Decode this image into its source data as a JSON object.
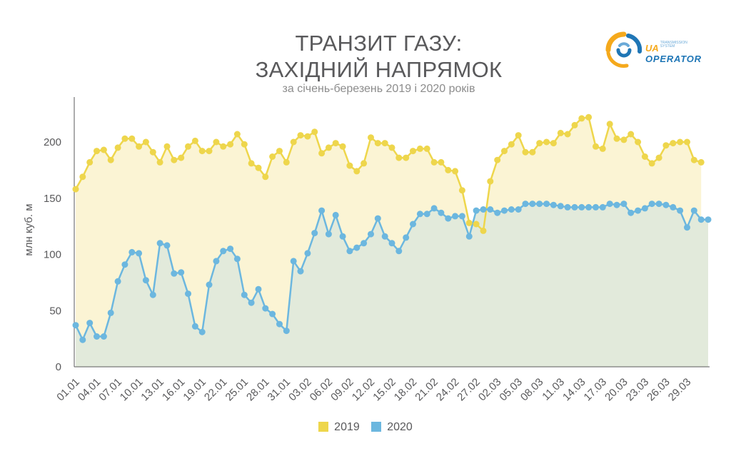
{
  "header": {
    "title_line1": "ТРАНЗИТ ГАЗУ:",
    "title_line2": "ЗАХІДНИЙ НАПРЯМОК",
    "subtitle": "за січень-березень 2019 і 2020 років"
  },
  "logo": {
    "ua": "UA",
    "tagline_1": "transmission",
    "tagline_2": "system",
    "operator": "OPERATOR",
    "colors": [
      "#f5a91c",
      "#1f76b6",
      "#6aa9d8"
    ]
  },
  "colors": {
    "series_2019": "#eed64c",
    "fill_2019": "#fbf4d4",
    "series_2020": "#6cb7df",
    "fill_2020": "#e2eadb",
    "axis": "#59595b"
  },
  "chart_data": {
    "type": "line",
    "title": "ТРАНЗИТ ГАЗУ: ЗАХІДНИЙ НАПРЯМОК",
    "subtitle": "за січень-березень 2019 і 2020 років",
    "ylabel": "млн куб. м",
    "xlabel": "",
    "ylim": [
      0,
      240
    ],
    "yticks": [
      0,
      50,
      100,
      150,
      200
    ],
    "grid": false,
    "legend_position": "bottom",
    "x_tick_labels": [
      "01.01",
      "04.01",
      "07.01",
      "10.01",
      "13.01",
      "16.01",
      "19.01",
      "22.01",
      "25.01",
      "28.01",
      "31.01",
      "03.02",
      "06.02",
      "09.02",
      "12.02",
      "15.02",
      "18.02",
      "21.02",
      "24.02",
      "27.02",
      "02.03",
      "05.03",
      "08.03",
      "11.03",
      "14.03",
      "17.03",
      "20.03",
      "23.03",
      "26.03",
      "29.03"
    ],
    "series": [
      {
        "name": "2019",
        "values": [
          158,
          169,
          182,
          192,
          193,
          184,
          195,
          203,
          203,
          196,
          200,
          191,
          182,
          196,
          184,
          186,
          196,
          201,
          192,
          192,
          200,
          196,
          198,
          207,
          198,
          181,
          177,
          169,
          187,
          192,
          182,
          200,
          206,
          205,
          209,
          190,
          195,
          199,
          196,
          179,
          174,
          181,
          204,
          199,
          199,
          195,
          186,
          186,
          192,
          194,
          194,
          182,
          182,
          175,
          174,
          157,
          128,
          127,
          121,
          165,
          184,
          192,
          198,
          206,
          191,
          191,
          199,
          200,
          199,
          208,
          207,
          215,
          221,
          222,
          196,
          194,
          216,
          203,
          202,
          207,
          200,
          187,
          181,
          186,
          197,
          199,
          200,
          200,
          184,
          182
        ]
      },
      {
        "name": "2020",
        "values": [
          37,
          24,
          39,
          27,
          27,
          48,
          76,
          91,
          102,
          101,
          77,
          64,
          110,
          108,
          83,
          84,
          65,
          36,
          31,
          73,
          94,
          103,
          105,
          96,
          64,
          57,
          69,
          52,
          47,
          38,
          32,
          94,
          85,
          101,
          119,
          139,
          118,
          135,
          116,
          103,
          106,
          110,
          118,
          132,
          116,
          110,
          103,
          115,
          127,
          136,
          136,
          141,
          137,
          132,
          134,
          134,
          116,
          139,
          140,
          140,
          137,
          139,
          140,
          140,
          145,
          145,
          145,
          145,
          144,
          143,
          142,
          142,
          142,
          142,
          142,
          142,
          145,
          144,
          145,
          137,
          139,
          141,
          145,
          145,
          144,
          142,
          139,
          124,
          139,
          131,
          131
        ]
      }
    ]
  }
}
